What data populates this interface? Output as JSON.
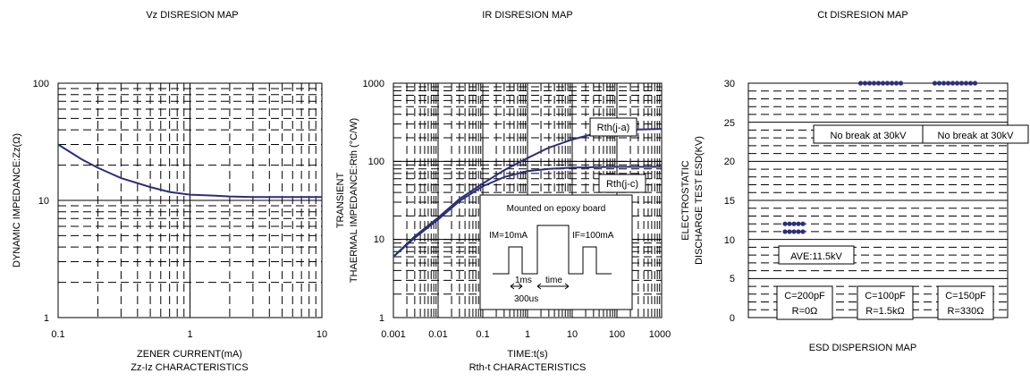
{
  "page": {
    "map_titles": [
      "Vz DISRESION MAP",
      "IR DISRESION MAP",
      "Ct DISRESION MAP"
    ]
  },
  "chart_data": [
    {
      "type": "line",
      "title": "Zz-Iz CHARACTERISTICS",
      "xlabel": "ZENER CURRENT(mA)",
      "ylabel": "DYNAMIC IMPEDANCE:Zz(Ω)",
      "xscale": "log",
      "yscale": "log",
      "xlim": [
        0.1,
        10
      ],
      "ylim": [
        1,
        100
      ],
      "x_ticks": [
        "0.1",
        "1",
        "10"
      ],
      "y_ticks": [
        "1",
        "10",
        "100"
      ],
      "color": "#2b2f7a",
      "series": [
        {
          "x": [
            0.1,
            0.15,
            0.2,
            0.3,
            0.5,
            0.7,
            1,
            1.5,
            2,
            3,
            5,
            10
          ],
          "y": [
            30,
            22.5,
            19,
            15.5,
            13,
            11.8,
            11.2,
            11,
            10.8,
            10.7,
            10.7,
            10.7
          ]
        }
      ]
    },
    {
      "type": "line",
      "title": "Rth-t CHARACTERISTICS",
      "xlabel": "TIME:t(s)",
      "ylabel_lines": [
        "TRANSIENT",
        "THAERMAL IMPEDANCE:Rth (°C/W)"
      ],
      "xscale": "log",
      "yscale": "log",
      "xlim": [
        0.001,
        1000
      ],
      "ylim": [
        1,
        1000
      ],
      "x_ticks": [
        "0.001",
        "0.01",
        "0.1",
        "1",
        "10",
        "100",
        "1000"
      ],
      "y_ticks": [
        "1",
        "10",
        "100",
        "1000"
      ],
      "color": "#2b2f7a",
      "series": [
        {
          "name": "Rth(j-a)",
          "x": [
            0.001,
            0.003,
            0.01,
            0.03,
            0.1,
            0.3,
            1,
            3,
            10,
            30,
            100,
            300,
            1000
          ],
          "y": [
            6,
            11,
            19,
            33,
            52,
            77,
            110,
            150,
            190,
            225,
            245,
            255,
            260
          ]
        },
        {
          "name": "Rth(j-c)",
          "x": [
            0.001,
            0.003,
            0.01,
            0.03,
            0.1,
            0.3,
            1,
            3,
            10,
            30,
            100,
            300,
            1000
          ],
          "y": [
            6,
            10.5,
            18,
            31,
            48,
            63,
            75,
            80,
            83,
            84,
            85,
            85,
            85
          ]
        }
      ],
      "inset": {
        "title": "Mounted on epoxy board",
        "label_left": "IM=10mA",
        "label_right": "IF=100mA",
        "label_pulse": "1ms",
        "label_time": "time",
        "label_period": "300us"
      }
    },
    {
      "type": "scatter",
      "title": "ESD DISPERSION MAP",
      "ylabel_lines": [
        "ELECTROSTATIC",
        "DISCHARGE TEST ESD(KV)"
      ],
      "ylim": [
        0,
        30
      ],
      "y_ticks": [
        "0",
        "5",
        "10",
        "15",
        "20",
        "25",
        "30"
      ],
      "color": "#2b2f7a",
      "groups": [
        {
          "condition": [
            "C=200pF",
            "R=0Ω"
          ],
          "values_kV": [
            11,
            11,
            11,
            11,
            11,
            12,
            12,
            12,
            12,
            12
          ],
          "annotation": "AVE:11.5kV"
        },
        {
          "condition": [
            "C=100pF",
            "R=1.5kΩ"
          ],
          "values_kV": [
            30,
            30,
            30,
            30,
            30,
            30,
            30,
            30,
            30,
            30
          ],
          "annotation": "No break at 30kV"
        },
        {
          "condition": [
            "C=150pF",
            "R=330Ω"
          ],
          "values_kV": [
            30,
            30,
            30,
            30,
            30,
            30,
            30,
            30,
            30,
            30
          ],
          "annotation": "No break at 30kV"
        }
      ]
    }
  ]
}
